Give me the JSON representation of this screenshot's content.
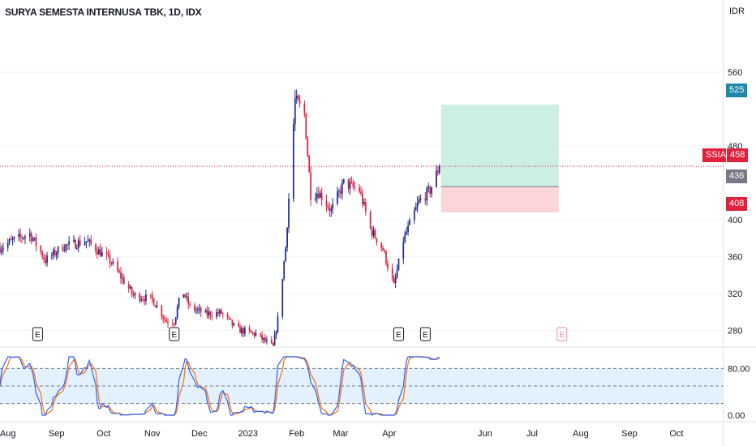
{
  "header": {
    "title": "SURYA SEMESTA INTERNUSA TBK, 1D, IDX",
    "currency": "IDR"
  },
  "colors": {
    "up": "#1e2a8c",
    "down": "#e0223c",
    "target_zone": "#cdeee3",
    "stop_zone": "#fbd5d7",
    "last_price_line": "#e0223c",
    "stoch_k": "#2962ff",
    "stoch_d": "#ff6d00",
    "stoch_band": "#e3f0fd",
    "earnings_future": "#f28b9a"
  },
  "price_axis": {
    "ticks": [
      "560",
      "480",
      "400",
      "360",
      "320",
      "280"
    ],
    "labels": {
      "target": "525",
      "ticker": "SSIA",
      "last": "458",
      "entry": "436",
      "stop": "408"
    }
  },
  "stoch_axis": {
    "ticks": [
      "80.00",
      "0.00"
    ]
  },
  "time_axis": {
    "labels": [
      "Aug",
      "Sep",
      "Oct",
      "Nov",
      "Dec",
      "2023",
      "Feb",
      "Mar",
      "Apr",
      "Jun",
      "Jul",
      "Aug",
      "Sep",
      "Oct"
    ]
  },
  "earnings": {
    "label": "E"
  },
  "chart_data": {
    "type": "candlestick",
    "title": "SURYA SEMESTA INTERNUSA TBK, 1D, IDX",
    "y_unit": "IDR",
    "ylim": [
      262,
      612
    ],
    "x_start": "2022-07-27",
    "x_end": "2023-10-31",
    "anchors": [
      {
        "date": "2022-07-27",
        "close": 370
      },
      {
        "date": "2022-08-05",
        "close": 378
      },
      {
        "date": "2022-08-15",
        "close": 385
      },
      {
        "date": "2022-08-25",
        "close": 356
      },
      {
        "date": "2022-09-05",
        "close": 371
      },
      {
        "date": "2022-09-20",
        "close": 377
      },
      {
        "date": "2022-10-05",
        "close": 356
      },
      {
        "date": "2022-10-20",
        "close": 318
      },
      {
        "date": "2022-11-01",
        "close": 314
      },
      {
        "date": "2022-11-10",
        "close": 290
      },
      {
        "date": "2022-11-15",
        "close": 290
      },
      {
        "date": "2022-11-20",
        "close": 325
      },
      {
        "date": "2022-11-25",
        "close": 305
      },
      {
        "date": "2022-12-05",
        "close": 298
      },
      {
        "date": "2022-12-15",
        "close": 299
      },
      {
        "date": "2022-12-25",
        "close": 281
      },
      {
        "date": "2023-01-06",
        "close": 276
      },
      {
        "date": "2023-01-17",
        "close": 262
      },
      {
        "date": "2023-01-20",
        "close": 292
      },
      {
        "date": "2023-01-25",
        "close": 370
      },
      {
        "date": "2023-01-31",
        "close": 530
      },
      {
        "date": "2023-02-06",
        "close": 515
      },
      {
        "date": "2023-02-10",
        "close": 428
      },
      {
        "date": "2023-02-15",
        "close": 430
      },
      {
        "date": "2023-02-23",
        "close": 410
      },
      {
        "date": "2023-03-03",
        "close": 440
      },
      {
        "date": "2023-03-13",
        "close": 432
      },
      {
        "date": "2023-03-20",
        "close": 390
      },
      {
        "date": "2023-03-28",
        "close": 368
      },
      {
        "date": "2023-04-04",
        "close": 328
      },
      {
        "date": "2023-04-10",
        "close": 378
      },
      {
        "date": "2023-04-20",
        "close": 420
      },
      {
        "date": "2023-04-27",
        "close": 432
      },
      {
        "date": "2023-05-03",
        "close": 458
      }
    ],
    "position": {
      "entry": 436,
      "target": 525,
      "stop": 408,
      "start": "2023-05-04",
      "end": "2023-07-18"
    },
    "last_price": 458,
    "earnings_dates": [
      "2022-08-20",
      "2022-11-15",
      "2023-04-07",
      "2023-04-24",
      "2023-07-20"
    ],
    "stochastic": {
      "ylim": [
        0,
        100
      ],
      "bands": [
        20,
        50,
        80
      ]
    }
  }
}
